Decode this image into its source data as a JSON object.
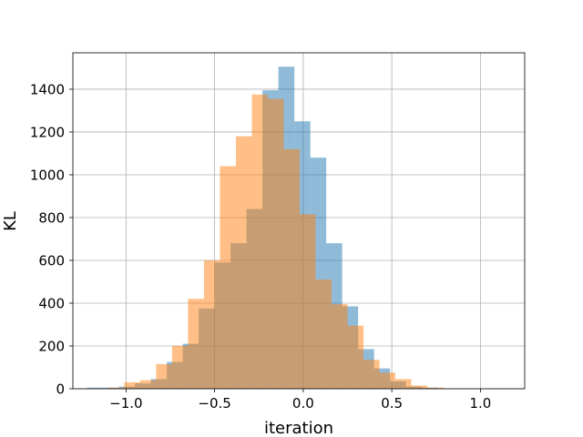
{
  "chart_data": {
    "type": "bar",
    "title": "",
    "xlabel": "iteration",
    "ylabel": "KL",
    "xlim": [
      -1.3,
      1.25
    ],
    "ylim": [
      0,
      1570
    ],
    "xticks": [
      -1.0,
      -0.5,
      0.0,
      0.5,
      1.0
    ],
    "xtick_labels": [
      "−1.0",
      "−0.5",
      "0.0",
      "0.5",
      "1.0"
    ],
    "yticks": [
      0,
      200,
      400,
      600,
      800,
      1000,
      1200,
      1400
    ],
    "yticks_labels": [
      "0",
      "200",
      "400",
      "600",
      "800",
      "1000",
      "1200",
      "1400"
    ],
    "grid": true,
    "legend": null,
    "series": [
      {
        "color": "#1f77b4",
        "opacity": 0.5,
        "bins": [
          {
            "x0": -1.22,
            "x1": -1.13,
            "y": 5
          },
          {
            "x0": -1.13,
            "x1": -1.04,
            "y": 5
          },
          {
            "x0": -1.04,
            "x1": -0.95,
            "y": 10
          },
          {
            "x0": -0.95,
            "x1": -0.86,
            "y": 25
          },
          {
            "x0": -0.86,
            "x1": -0.77,
            "y": 45
          },
          {
            "x0": -0.77,
            "x1": -0.68,
            "y": 125
          },
          {
            "x0": -0.68,
            "x1": -0.59,
            "y": 210
          },
          {
            "x0": -0.59,
            "x1": -0.5,
            "y": 375
          },
          {
            "x0": -0.5,
            "x1": -0.41,
            "y": 590
          },
          {
            "x0": -0.41,
            "x1": -0.32,
            "y": 680
          },
          {
            "x0": -0.32,
            "x1": -0.23,
            "y": 840
          },
          {
            "x0": -0.23,
            "x1": -0.14,
            "y": 1395
          },
          {
            "x0": -0.14,
            "x1": -0.05,
            "y": 1505
          },
          {
            "x0": -0.05,
            "x1": 0.04,
            "y": 1250
          },
          {
            "x0": 0.04,
            "x1": 0.13,
            "y": 1080
          },
          {
            "x0": 0.13,
            "x1": 0.22,
            "y": 680
          },
          {
            "x0": 0.22,
            "x1": 0.31,
            "y": 385
          },
          {
            "x0": 0.31,
            "x1": 0.4,
            "y": 185
          },
          {
            "x0": 0.4,
            "x1": 0.49,
            "y": 95
          },
          {
            "x0": 0.49,
            "x1": 0.58,
            "y": 35
          },
          {
            "x0": 0.58,
            "x1": 0.67,
            "y": 10
          },
          {
            "x0": 0.67,
            "x1": 0.76,
            "y": 5
          }
        ]
      },
      {
        "color": "#ff7f0e",
        "opacity": 0.5,
        "bins": [
          {
            "x0": -1.1,
            "x1": -1.01,
            "y": 5
          },
          {
            "x0": -1.01,
            "x1": -0.92,
            "y": 30
          },
          {
            "x0": -0.92,
            "x1": -0.83,
            "y": 40
          },
          {
            "x0": -0.83,
            "x1": -0.74,
            "y": 115
          },
          {
            "x0": -0.74,
            "x1": -0.65,
            "y": 200
          },
          {
            "x0": -0.65,
            "x1": -0.56,
            "y": 420
          },
          {
            "x0": -0.56,
            "x1": -0.47,
            "y": 600
          },
          {
            "x0": -0.47,
            "x1": -0.38,
            "y": 1040
          },
          {
            "x0": -0.38,
            "x1": -0.29,
            "y": 1180
          },
          {
            "x0": -0.29,
            "x1": -0.2,
            "y": 1375
          },
          {
            "x0": -0.2,
            "x1": -0.11,
            "y": 1355
          },
          {
            "x0": -0.11,
            "x1": -0.02,
            "y": 1120
          },
          {
            "x0": -0.02,
            "x1": 0.07,
            "y": 815
          },
          {
            "x0": 0.07,
            "x1": 0.16,
            "y": 510
          },
          {
            "x0": 0.16,
            "x1": 0.25,
            "y": 395
          },
          {
            "x0": 0.25,
            "x1": 0.34,
            "y": 295
          },
          {
            "x0": 0.34,
            "x1": 0.43,
            "y": 135
          },
          {
            "x0": 0.43,
            "x1": 0.52,
            "y": 75
          },
          {
            "x0": 0.52,
            "x1": 0.61,
            "y": 45
          },
          {
            "x0": 0.61,
            "x1": 0.7,
            "y": 15
          },
          {
            "x0": 0.7,
            "x1": 0.79,
            "y": 5
          }
        ]
      }
    ]
  }
}
